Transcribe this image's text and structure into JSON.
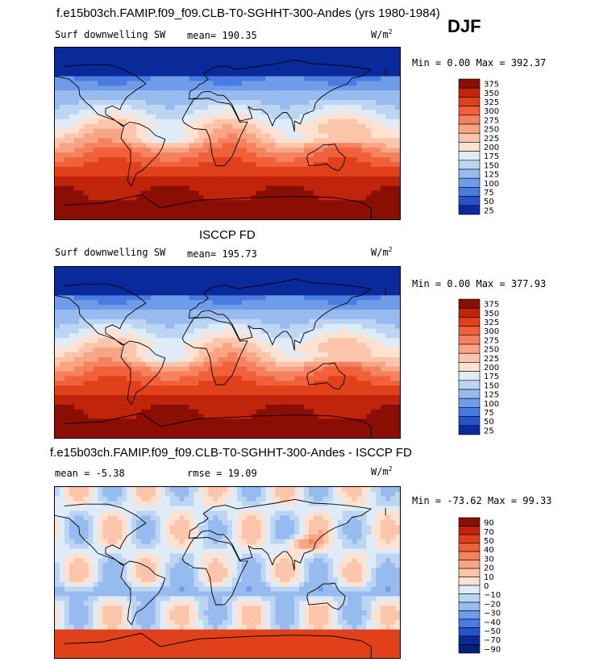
{
  "main_title": "f.e15b03ch.FAMIP.f09_f09.CLB-T0-SGHHT-300-Andes (yrs 1980-1984)",
  "season": "DJF",
  "panels": [
    {
      "variable": "Surf downwelling SW",
      "stat1": "mean= 190.35",
      "stat2": "",
      "units": "W/m",
      "units_sup": "2",
      "range_text": "Min =   0.00 Max = 392.37",
      "palette": "sequential",
      "levels": [
        "375",
        "350",
        "325",
        "300",
        "275",
        "250",
        "225",
        "200",
        "175",
        "150",
        "125",
        "100",
        "75",
        "50",
        "25"
      ],
      "colors": [
        "#8b0e04",
        "#c0240b",
        "#e0401a",
        "#f0603a",
        "#f5825e",
        "#f8a585",
        "#fbc5ab",
        "#fde2d2",
        "#dfecf7",
        "#bcd5f2",
        "#97bbee",
        "#6f9ce8",
        "#4a7ce0",
        "#2652cf",
        "#0a2a9c"
      ]
    },
    {
      "title": "ISCCP FD",
      "variable": "Surf downwelling SW",
      "stat1": "mean= 195.73",
      "stat2": "",
      "units": "W/m",
      "units_sup": "2",
      "range_text": "Min =   0.00 Max = 377.93",
      "palette": "sequential",
      "levels": [
        "375",
        "350",
        "325",
        "300",
        "275",
        "250",
        "225",
        "200",
        "175",
        "150",
        "125",
        "100",
        "75",
        "50",
        "25"
      ],
      "colors": [
        "#8b0e04",
        "#c0240b",
        "#e0401a",
        "#f0603a",
        "#f5825e",
        "#f8a585",
        "#fbc5ab",
        "#fde2d2",
        "#dfecf7",
        "#bcd5f2",
        "#97bbee",
        "#6f9ce8",
        "#4a7ce0",
        "#2652cf",
        "#0a2a9c"
      ]
    },
    {
      "title": "f.e15b03ch.FAMIP.f09_f09.CLB-T0-SGHHT-300-Andes - ISCCP FD",
      "variable": "",
      "stat1": "mean =  -5.38",
      "stat2": "rmse =  19.09",
      "units": "W/m",
      "units_sup": "2",
      "range_text": "Min = -73.62 Max =  99.33",
      "palette": "diverging",
      "levels": [
        "90",
        "70",
        "50",
        "40",
        "30",
        "20",
        "10",
        "0",
        "−10",
        "−20",
        "−30",
        "−40",
        "−50",
        "−70",
        "−90"
      ],
      "colors": [
        "#8b0e04",
        "#c0240b",
        "#e0401a",
        "#f0603a",
        "#f5825e",
        "#f8a585",
        "#fbc5ab",
        "#fde2d2",
        "#dfecf7",
        "#bcd5f2",
        "#97bbee",
        "#6f9ce8",
        "#4a7ce0",
        "#2652cf",
        "#0a2a9c",
        "#081f7a"
      ]
    }
  ]
}
